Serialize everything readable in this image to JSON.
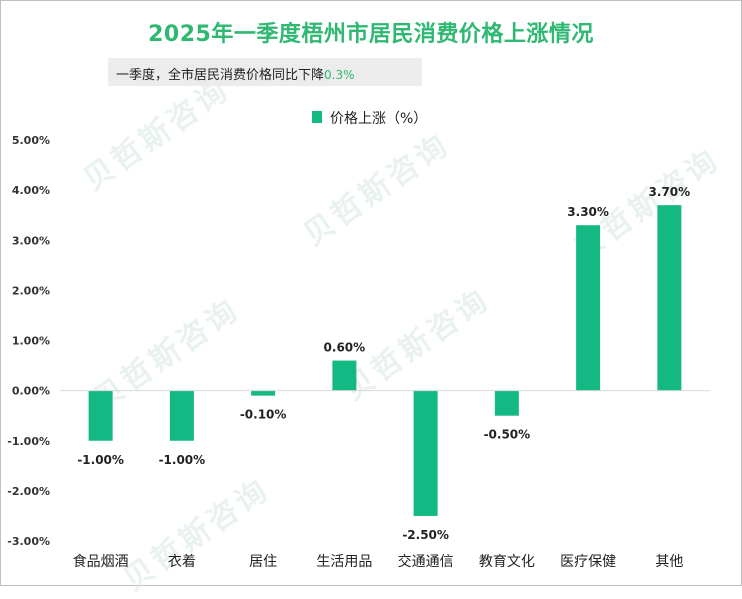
{
  "title": "2025年一季度梧州市居民消费价格上涨情况",
  "subtitle": {
    "text": "一季度，全市居民消费价格同比下降",
    "value": "0.3%"
  },
  "legend": {
    "label": "价格上涨（%）"
  },
  "watermark": {
    "text": "贝哲斯咨询"
  },
  "colors": {
    "bar": "#14b882",
    "title": "#2eb872",
    "axis": "#d9d9d9"
  },
  "chart_data": {
    "type": "bar",
    "categories": [
      "食品烟酒",
      "衣着",
      "居住",
      "生活用品",
      "交通通信",
      "教育文化",
      "医疗保健",
      "其他"
    ],
    "series": [
      {
        "name": "价格上涨（%）",
        "values": [
          -1.0,
          -1.0,
          -0.1,
          0.6,
          -2.5,
          -0.5,
          3.3,
          3.7
        ]
      }
    ],
    "data_labels": [
      "-1.00%",
      "-1.00%",
      "-0.10%",
      "0.60%",
      "-2.50%",
      "-0.50%",
      "3.30%",
      "3.70%"
    ],
    "ylim": [
      -3.0,
      5.0
    ],
    "yticks": [
      5.0,
      4.0,
      3.0,
      2.0,
      1.0,
      0.0,
      -1.0,
      -2.0,
      -3.0
    ],
    "ytick_labels": [
      "5.00%",
      "4.00%",
      "3.00%",
      "2.00%",
      "1.00%",
      "0.00%",
      "-1.00%",
      "-2.00%",
      "-3.00%"
    ],
    "grid": false,
    "legend_position": "top-center"
  }
}
